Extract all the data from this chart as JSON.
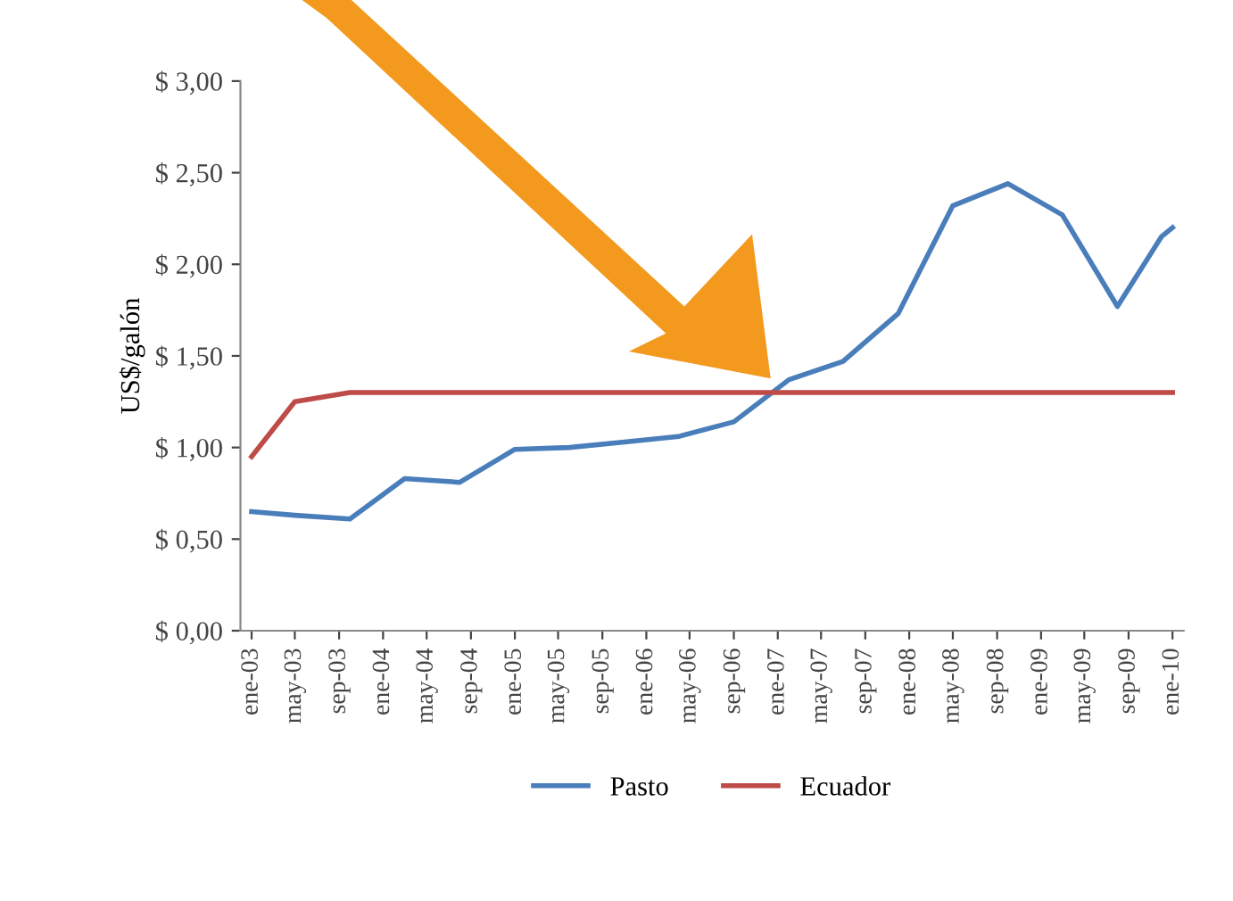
{
  "chart_data": {
    "type": "line",
    "ylabel": "US$/galón",
    "x": [
      "2003-01",
      "2003-05",
      "2003-10",
      "2004-03",
      "2004-08",
      "2005-01",
      "2005-06",
      "2005-11",
      "2006-04",
      "2006-09",
      "2007-02",
      "2007-07",
      "2007-12",
      "2008-05",
      "2008-10",
      "2009-03",
      "2009-08",
      "2009-12",
      "2010-01"
    ],
    "series": [
      {
        "name": "Pasto",
        "color": "#4a7ebb",
        "values": [
          0.65,
          0.63,
          0.61,
          0.83,
          0.81,
          0.99,
          1.0,
          1.03,
          1.06,
          1.14,
          1.37,
          1.47,
          1.73,
          2.32,
          2.44,
          2.27,
          1.77,
          2.15,
          2.2
        ]
      },
      {
        "name": "Ecuador",
        "color": "#be4b48",
        "values": [
          0.95,
          1.25,
          1.3,
          1.3,
          1.3,
          1.3,
          1.3,
          1.3,
          1.3,
          1.3,
          1.3,
          1.3,
          1.3,
          1.3,
          1.3,
          1.3,
          1.3,
          1.3,
          1.3
        ]
      }
    ],
    "xlim": [
      "2002-12",
      "2010-02"
    ],
    "xticks": [
      {
        "value": "2003-01",
        "label": "ene-03"
      },
      {
        "value": "2003-05",
        "label": "may-03"
      },
      {
        "value": "2003-09",
        "label": "sep-03"
      },
      {
        "value": "2004-01",
        "label": "ene-04"
      },
      {
        "value": "2004-05",
        "label": "may-04"
      },
      {
        "value": "2004-09",
        "label": "sep-04"
      },
      {
        "value": "2005-01",
        "label": "ene-05"
      },
      {
        "value": "2005-05",
        "label": "may-05"
      },
      {
        "value": "2005-09",
        "label": "sep-05"
      },
      {
        "value": "2006-01",
        "label": "ene-06"
      },
      {
        "value": "2006-05",
        "label": "may-06"
      },
      {
        "value": "2006-09",
        "label": "sep-06"
      },
      {
        "value": "2007-01",
        "label": "ene-07"
      },
      {
        "value": "2007-05",
        "label": "may-07"
      },
      {
        "value": "2007-09",
        "label": "sep-07"
      },
      {
        "value": "2008-01",
        "label": "ene-08"
      },
      {
        "value": "2008-05",
        "label": "may-08"
      },
      {
        "value": "2008-09",
        "label": "sep-08"
      },
      {
        "value": "2009-01",
        "label": "ene-09"
      },
      {
        "value": "2009-05",
        "label": "may-09"
      },
      {
        "value": "2009-09",
        "label": "sep-09"
      },
      {
        "value": "2010-01",
        "label": "ene-10"
      }
    ],
    "ylim": [
      0,
      3
    ],
    "yticks": [
      {
        "value": 0,
        "label": "$ 0,00"
      },
      {
        "value": 0.5,
        "label": "$ 0,50"
      },
      {
        "value": 1,
        "label": "$ 1,00"
      },
      {
        "value": 1.5,
        "label": "$ 1,50"
      },
      {
        "value": 2,
        "label": "$ 2,00"
      },
      {
        "value": 2.5,
        "label": "$ 2,50"
      },
      {
        "value": 3,
        "label": "$ 3,00"
      }
    ],
    "grid": false,
    "legend": "bottom",
    "marker": "none",
    "line_style": "solid"
  }
}
